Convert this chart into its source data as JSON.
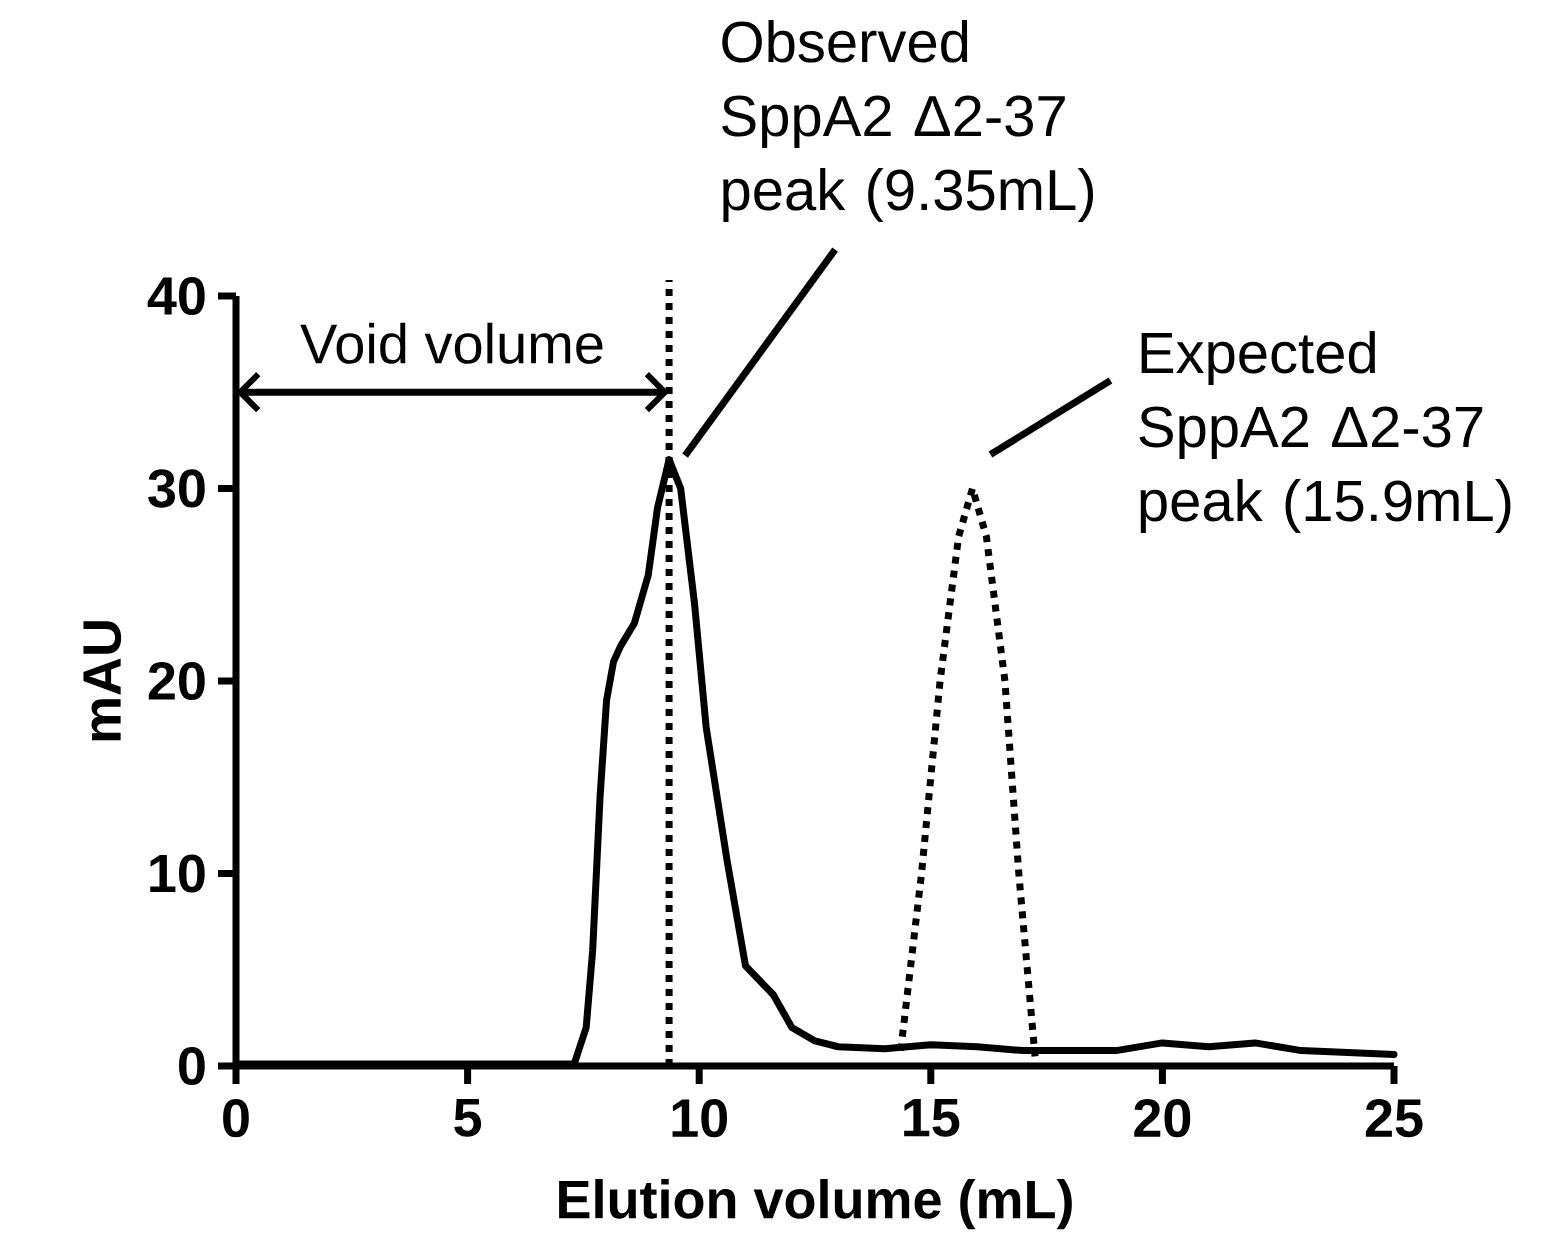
{
  "chart_data": {
    "type": "line",
    "xlabel": "Elution volume (mL)",
    "ylabel": "mAU",
    "xlim": [
      0,
      25
    ],
    "ylim": [
      0,
      40
    ],
    "xticks": [
      0,
      5,
      10,
      15,
      20,
      25
    ],
    "yticks": [
      0,
      10,
      20,
      30,
      40
    ],
    "series": [
      {
        "color": "#000000",
        "line_style": "solid",
        "x": [
          0,
          3,
          7.3,
          7.56,
          7.7,
          7.86,
          8.0,
          8.15,
          8.3,
          8.6,
          8.9,
          9.1,
          9.35,
          9.6,
          9.9,
          10.15,
          10.6,
          11.0,
          11.6,
          12.0,
          12.5,
          13,
          14,
          15,
          16,
          17,
          18,
          19,
          20,
          21,
          22,
          23,
          24,
          25
        ],
        "values": [
          0.1,
          0.1,
          0.1,
          2,
          6,
          14,
          19,
          21,
          21.8,
          23,
          25.5,
          29,
          31.5,
          30,
          24,
          17.6,
          10.7,
          5.2,
          3.7,
          2,
          1.3,
          1,
          0.9,
          1.1,
          1,
          0.8,
          0.8,
          0.8,
          1.2,
          1,
          1.2,
          0.8,
          0.7,
          0.6
        ]
      },
      {
        "color": "#000000",
        "line_style": "dotted",
        "x": [
          14.35,
          14.8,
          15.2,
          15.6,
          15.9,
          16.2,
          16.6,
          16.9,
          17.25
        ],
        "values": [
          0.8,
          10,
          20,
          27.5,
          30,
          27.5,
          20,
          10,
          0.5
        ]
      }
    ],
    "ref_lines": [
      {
        "axis": "x",
        "value": 9.35,
        "line_style": "dotted",
        "color": "#000000"
      }
    ],
    "annotations": [
      "Void volume",
      {
        "text": "Observed SppA2 Δ2-37 peak (9.35mL)",
        "x": 9.35,
        "y": 31.5
      },
      {
        "text": "Expected SppA2 Δ2-37 peak (15.9mL)",
        "x": 15.9,
        "y": 30
      }
    ],
    "grid": false
  }
}
